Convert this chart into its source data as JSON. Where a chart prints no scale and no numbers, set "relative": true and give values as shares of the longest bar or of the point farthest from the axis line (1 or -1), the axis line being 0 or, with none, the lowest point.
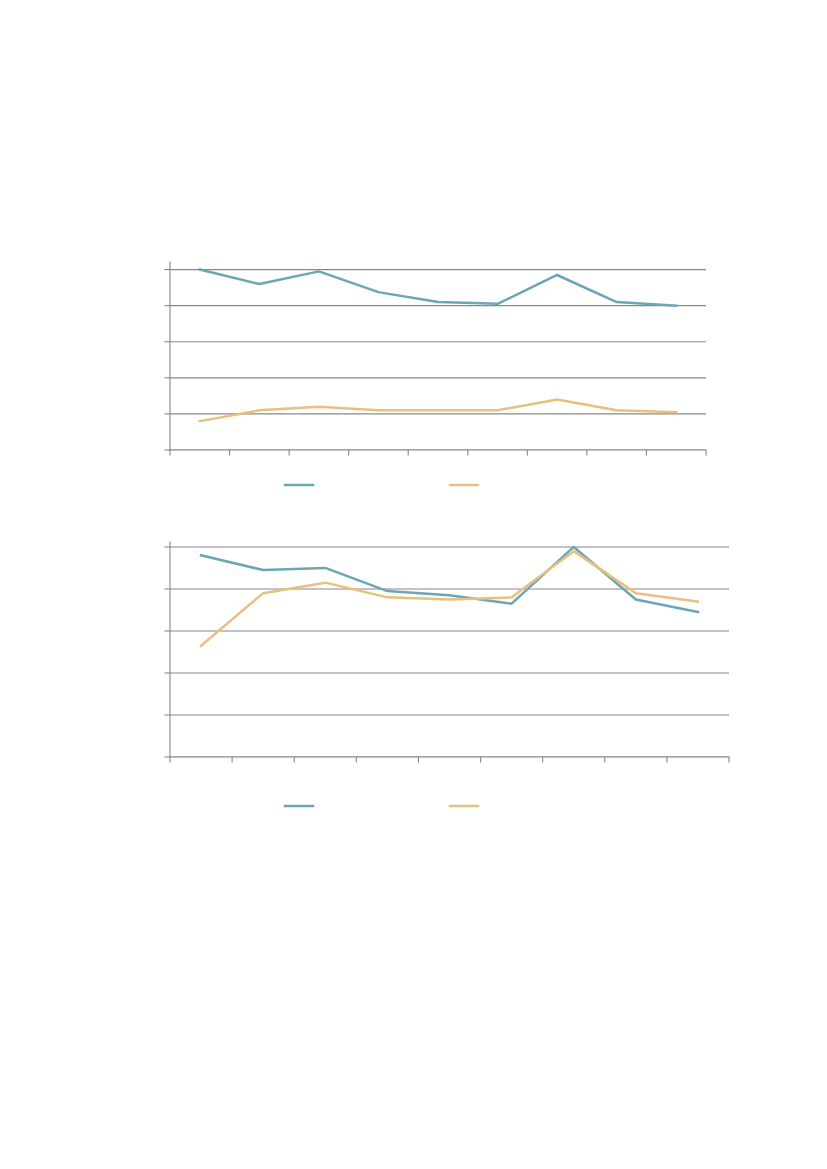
{
  "chart_data": [
    {
      "type": "line",
      "relative": true,
      "categories": [
        null,
        null,
        null,
        null,
        null,
        null,
        null,
        null,
        null
      ],
      "tick_labels": false,
      "grid": "y",
      "series": [
        {
          "color": "#6aa6b3",
          "values": [
            1,
            0.92,
            0.99,
            0.875,
            0.82,
            0.81,
            0.97,
            0.82,
            0.8
          ]
        },
        {
          "color": "#e8c07d",
          "values": [
            0.16,
            0.22,
            0.24,
            0.22,
            0.22,
            0.22,
            0.28,
            0.22,
            0.21
          ]
        }
      ]
    },
    {
      "type": "line",
      "relative": true,
      "categories": [
        null,
        null,
        null,
        null,
        null,
        null,
        null,
        null,
        null
      ],
      "tick_labels": false,
      "grid": "y",
      "series": [
        {
          "color": "#6aa6b3",
          "values": [
            0.96,
            0.89,
            0.9,
            0.79,
            0.77,
            0.73,
            1,
            0.75,
            0.69
          ]
        },
        {
          "color": "#e8c07d",
          "values": [
            0.53,
            0.78,
            0.83,
            0.76,
            0.75,
            0.76,
            0.98,
            0.78,
            0.74
          ]
        }
      ]
    }
  ]
}
